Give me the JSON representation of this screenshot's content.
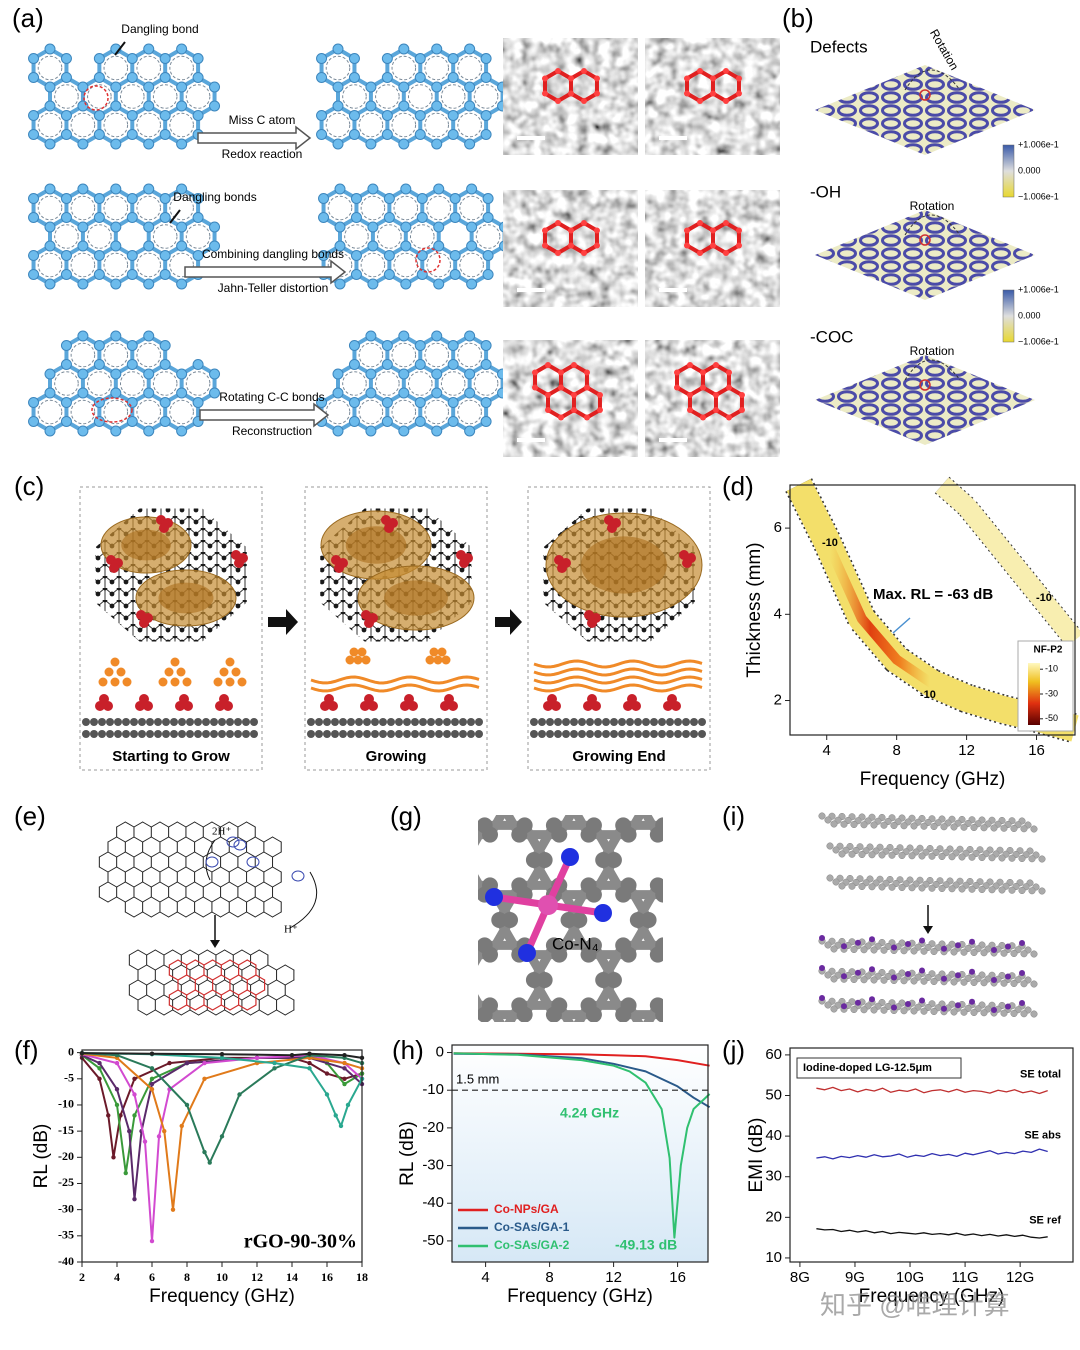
{
  "panel_labels": [
    "(a)",
    "(b)",
    "(c)",
    "(d)",
    "(e)",
    "(f)",
    "(g)",
    "(h)",
    "(i)",
    "(j)"
  ],
  "panel_a": {
    "rows": [
      {
        "note": "Dangling bond",
        "arrow_top": "Miss C atom",
        "arrow_bottom": "Redox reaction"
      },
      {
        "note": "Dangling bonds",
        "arrow_top": "Combining dangling bonds",
        "arrow_bottom": "Jahn-Teller distortion"
      },
      {
        "arrow_top": "Rotating C-C bonds",
        "arrow_bottom": "Reconstruction"
      }
    ]
  },
  "panel_b": {
    "rows": [
      {
        "label": "Defects",
        "annotation": "Rotation",
        "colorbar_labels": [
          "+1.006e-1",
          "0.000",
          "−1.006e-1"
        ]
      },
      {
        "label": "-OH",
        "annotation": "Rotation",
        "colorbar_labels": [
          "+1.006e-1",
          "0.000",
          "−1.006e-1"
        ]
      },
      {
        "label": "-COC",
        "annotation": "Rotation"
      }
    ]
  },
  "panel_c": {
    "stages": [
      "Starting to Grow",
      "Growing",
      "Growing End"
    ]
  },
  "panel_e": {
    "labels": [
      "2H⁺",
      "H⁺"
    ]
  },
  "panel_g": {
    "label": "Co-N₄"
  },
  "chart_data": [
    {
      "type": "contour",
      "xlabel": "Frequency (GHz)",
      "ylabel": "Thickness (mm)",
      "xlim": [
        1.9,
        18.2
      ],
      "ylim": [
        1.2,
        7.0
      ],
      "xticks": [
        4,
        8,
        12,
        16
      ],
      "yticks": [
        2,
        4,
        6
      ],
      "annotation": "Max. RL = -63 dB",
      "contour_levels": [
        -10,
        -10,
        -10
      ],
      "colorbar": {
        "title": "NF-P2",
        "clim": [
          -5,
          -55
        ],
        "ticks": [
          -10,
          -30,
          -50
        ]
      },
      "series": [
        {
          "color": "#f3df6a",
          "x": [
            2.4,
            4,
            6,
            8,
            10,
            12,
            14,
            16,
            18.2
          ],
          "values": [
            7.0,
            5.7,
            3.9,
            2.95,
            2.4,
            2.05,
            1.8,
            1.6,
            1.35
          ]
        },
        {
          "color": "#f8eeb0",
          "x": [
            10.6,
            12,
            14,
            16,
            18.2
          ],
          "values": [
            7.0,
            6.5,
            5.5,
            4.5,
            3.4
          ]
        }
      ]
    },
    {
      "type": "line",
      "xlabel": "Frequency (GHz)",
      "ylabel": "RL (dB)",
      "xlim": [
        2,
        18
      ],
      "ylim": [
        -40,
        0.5
      ],
      "xticks": [
        2,
        4,
        6,
        8,
        10,
        12,
        14,
        16,
        18
      ],
      "yticks": [
        0,
        -5,
        -10,
        -15,
        -20,
        -25,
        -30,
        -35,
        -40
      ],
      "annotation": "rGO-90-30%",
      "series": [
        {
          "color": "#6b1a2a",
          "x": [
            2,
            3,
            3.5,
            3.8,
            4.2,
            5,
            7,
            10,
            14,
            15,
            16,
            17,
            18
          ],
          "values": [
            -1,
            -5,
            -12,
            -20,
            -12,
            -5,
            -2,
            -1,
            -1,
            -2,
            -4,
            -5,
            -4
          ]
        },
        {
          "color": "#3a9a3a",
          "x": [
            2,
            3,
            4,
            4.5,
            5,
            6,
            8,
            12,
            14,
            15,
            16,
            17,
            18
          ],
          "values": [
            -0.5,
            -3,
            -10,
            -23,
            -12,
            -5,
            -2,
            -1,
            -1,
            -0.5,
            -2,
            -6,
            -4
          ]
        },
        {
          "color": "#5a2a6a",
          "x": [
            2,
            3,
            4,
            4.7,
            5,
            5.4,
            6,
            8,
            12,
            15,
            17,
            18
          ],
          "values": [
            -0.5,
            -2,
            -7,
            -15,
            -28,
            -15,
            -6,
            -2,
            -1,
            -1,
            -3,
            -6
          ]
        },
        {
          "color": "#d24ad0",
          "x": [
            2,
            4,
            5,
            5.6,
            6,
            6.4,
            7,
            9,
            12,
            15,
            17,
            18
          ],
          "values": [
            -0.3,
            -2,
            -8,
            -17,
            -36,
            -16,
            -7,
            -2,
            -1,
            -0.5,
            -2,
            -5
          ]
        },
        {
          "color": "#e07a1a",
          "x": [
            2,
            4,
            6,
            6.7,
            7.2,
            7.7,
            9,
            12,
            15,
            17,
            18
          ],
          "values": [
            -0.2,
            -1,
            -7,
            -15,
            -30,
            -14,
            -5,
            -2,
            -1,
            -2,
            -3
          ]
        },
        {
          "color": "#2a7a5a",
          "x": [
            2,
            4,
            6,
            8,
            9,
            9.3,
            10,
            11,
            13,
            15,
            17,
            18
          ],
          "values": [
            -0.1,
            -0.5,
            -3,
            -10,
            -19,
            -21,
            -16,
            -8,
            -3,
            -0.5,
            -1,
            -2
          ]
        },
        {
          "color": "#2aa890",
          "x": [
            2,
            6,
            10,
            13,
            15,
            16,
            16.5,
            16.8,
            17.2,
            18
          ],
          "values": [
            -0.1,
            -0.3,
            -1,
            -2,
            -3,
            -8,
            -12,
            -14,
            -10,
            -5
          ]
        },
        {
          "color": "#222222",
          "x": [
            2,
            6,
            10,
            14,
            15,
            17,
            18
          ],
          "values": [
            -0.1,
            -0.2,
            -0.3,
            -0.5,
            -0.2,
            -0.5,
            -1
          ]
        }
      ]
    },
    {
      "type": "line",
      "xlabel": "Frequency (GHz)",
      "ylabel": "RL (dB)",
      "xlim": [
        1.9,
        17.9
      ],
      "ylim": [
        -55.6,
        2
      ],
      "xticks": [
        4,
        8,
        12,
        16
      ],
      "yticks": [
        0,
        -10,
        -20,
        -30,
        -40,
        -50
      ],
      "hline": {
        "value": -10,
        "label": "1.5 mm"
      },
      "annotations": [
        "4.24 GHz",
        "-49.13 dB"
      ],
      "legend": "lower left",
      "series": [
        {
          "name": "Co-NPs/GA",
          "color": "#e02020",
          "x": [
            2,
            6,
            10,
            12,
            14,
            16,
            18
          ],
          "values": [
            -0.2,
            -0.3,
            -0.5,
            -0.7,
            -1,
            -2,
            -3.5
          ]
        },
        {
          "name": "Co-SAs/GA-1",
          "color": "#2a5a8a",
          "x": [
            2,
            6,
            10,
            12,
            14,
            15,
            16,
            17,
            18
          ],
          "values": [
            -0.3,
            -0.5,
            -1.5,
            -3,
            -5,
            -7,
            -9,
            -12,
            -14.5
          ]
        },
        {
          "name": "Co-SAs/GA-2",
          "color": "#30c070",
          "x": [
            2,
            6,
            10,
            12,
            13,
            14,
            15,
            15.5,
            15.8,
            16.2,
            16.6,
            17,
            18
          ],
          "values": [
            -0.2,
            -0.6,
            -2,
            -3.5,
            -5,
            -8,
            -15,
            -28,
            -49.13,
            -30,
            -20,
            -15,
            -11
          ]
        }
      ]
    },
    {
      "type": "line",
      "xlabel": "Frequency (GHz)",
      "ylabel": "EMI (dB)",
      "subtitle": "Iodine-doped LG-12.5μm",
      "xlim": [
        7.82,
        12.96
      ],
      "ylim": [
        9,
        61.7
      ],
      "xticks": [
        {
          "value": 8,
          "label": "8G"
        },
        {
          "value": 9,
          "label": "9G"
        },
        {
          "value": 10,
          "label": "10G"
        },
        {
          "value": 11,
          "label": "11G"
        },
        {
          "value": 12,
          "label": "12G"
        }
      ],
      "yticks": [
        10,
        20,
        30,
        40,
        50,
        60
      ],
      "x": [
        8.3,
        8.45,
        8.6,
        8.75,
        8.9,
        9.05,
        9.2,
        9.35,
        9.5,
        9.65,
        9.8,
        9.95,
        10.1,
        10.25,
        10.4,
        10.55,
        10.7,
        10.85,
        11.0,
        11.15,
        11.3,
        11.45,
        11.6,
        11.75,
        11.9,
        12.05,
        12.2,
        12.35,
        12.5
      ],
      "series": [
        {
          "name": "SE total",
          "color": "#c03030",
          "values": [
            51.8,
            51.4,
            52.0,
            51.2,
            51.6,
            50.9,
            51.5,
            51.1,
            51.8,
            50.8,
            51.3,
            51.0,
            51.6,
            50.7,
            51.2,
            51.4,
            50.9,
            51.5,
            50.8,
            51.2,
            51.0,
            50.6,
            51.3,
            50.9,
            51.4,
            50.7,
            51.1,
            50.5,
            51.2
          ]
        },
        {
          "name": "SE abs",
          "color": "#3030b0",
          "values": [
            34.6,
            34.9,
            34.4,
            35.0,
            34.7,
            35.2,
            34.8,
            35.4,
            34.9,
            35.1,
            35.6,
            34.8,
            35.3,
            35.0,
            35.7,
            35.2,
            35.5,
            35.0,
            35.8,
            35.4,
            35.9,
            36.4,
            35.6,
            36.0,
            35.7,
            36.3,
            36.0,
            36.8,
            36.2
          ]
        },
        {
          "name": "SE ref",
          "color": "#111111",
          "values": [
            17.2,
            16.9,
            17.0,
            16.5,
            16.8,
            16.4,
            16.7,
            16.2,
            16.5,
            16.0,
            16.3,
            16.1,
            15.9,
            16.2,
            15.8,
            16.0,
            15.7,
            16.1,
            15.6,
            15.9,
            15.5,
            15.8,
            15.4,
            15.7,
            15.3,
            15.6,
            15.1,
            14.9,
            15.2
          ]
        }
      ]
    }
  ],
  "watermark": "知乎 @唯理计算"
}
